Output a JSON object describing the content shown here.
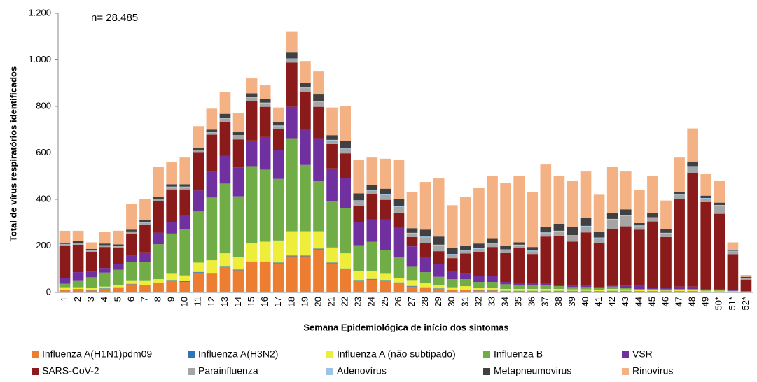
{
  "chart_data": {
    "type": "stacked-bar",
    "annotation": "n= 28.485",
    "ylabel": "Total de vírus respiratórios identificados",
    "xlabel": "Semana Epidemiológica de início dos sintomas",
    "categories": [
      "1",
      "2",
      "3",
      "4",
      "5",
      "6",
      "7",
      "8",
      "9",
      "10",
      "11",
      "12",
      "13",
      "14",
      "15",
      "16",
      "17",
      "18",
      "19",
      "20",
      "21",
      "22",
      "23",
      "24",
      "25",
      "26",
      "27",
      "28",
      "29",
      "30",
      "31",
      "32",
      "33",
      "34",
      "35",
      "36",
      "37",
      "38",
      "39",
      "40",
      "41",
      "42",
      "43",
      "44",
      "45",
      "46",
      "47",
      "48",
      "49",
      "50*",
      "51*",
      "52*"
    ],
    "ylim": [
      0,
      1200
    ],
    "yticks": [
      0,
      200,
      400,
      600,
      800,
      {
        "value": 1000,
        "label": "1.000"
      },
      {
        "value": 1200,
        "label": "1.200"
      }
    ],
    "series": [
      {
        "name": "Influenza A(H1N1)pdm09",
        "color": "#ed7d31",
        "values": [
          10,
          12,
          8,
          15,
          20,
          35,
          30,
          40,
          50,
          45,
          85,
          80,
          110,
          95,
          130,
          130,
          125,
          155,
          155,
          185,
          125,
          100,
          50,
          55,
          50,
          40,
          25,
          20,
          15,
          10,
          10,
          8,
          8,
          5,
          5,
          5,
          5,
          5,
          5,
          5,
          3,
          5,
          5,
          3,
          3,
          3,
          3,
          3,
          2,
          2,
          2,
          1
        ]
      },
      {
        "name": "Influenza A(H3N2)",
        "color": "#2e75b6",
        "values": [
          2,
          2,
          2,
          2,
          2,
          2,
          2,
          2,
          3,
          3,
          3,
          3,
          3,
          3,
          3,
          3,
          3,
          3,
          3,
          3,
          3,
          3,
          3,
          3,
          3,
          3,
          3,
          2,
          2,
          2,
          2,
          2,
          2,
          2,
          2,
          2,
          2,
          2,
          2,
          2,
          2,
          2,
          2,
          2,
          2,
          2,
          2,
          2,
          2,
          2,
          1,
          1
        ]
      },
      {
        "name": "Influenza A (não subtipado)",
        "color": "#eded3a",
        "values": [
          10,
          8,
          10,
          8,
          10,
          15,
          20,
          15,
          30,
          25,
          40,
          55,
          55,
          55,
          80,
          85,
          95,
          105,
          105,
          75,
          65,
          65,
          40,
          35,
          30,
          20,
          25,
          20,
          15,
          10,
          15,
          10,
          10,
          8,
          8,
          8,
          8,
          8,
          6,
          6,
          5,
          8,
          6,
          5,
          5,
          3,
          5,
          5,
          3,
          3,
          2,
          1
        ]
      },
      {
        "name": "Influenza B",
        "color": "#70ad47",
        "values": [
          15,
          30,
          45,
          60,
          65,
          80,
          80,
          150,
          170,
          200,
          220,
          270,
          300,
          260,
          330,
          310,
          265,
          400,
          285,
          215,
          200,
          195,
          110,
          125,
          100,
          90,
          60,
          45,
          35,
          35,
          30,
          25,
          25,
          20,
          15,
          15,
          15,
          12,
          10,
          10,
          8,
          10,
          8,
          5,
          5,
          5,
          5,
          5,
          3,
          3,
          2,
          1
        ]
      },
      {
        "name": "VSR",
        "color": "#7030a0",
        "values": [
          25,
          35,
          25,
          20,
          25,
          25,
          40,
          50,
          50,
          60,
          90,
          110,
          120,
          125,
          110,
          140,
          125,
          135,
          155,
          185,
          140,
          130,
          100,
          95,
          130,
          125,
          85,
          65,
          55,
          35,
          25,
          25,
          25,
          10,
          10,
          10,
          10,
          5,
          5,
          5,
          5,
          8,
          8,
          15,
          5,
          5,
          10,
          10,
          3,
          3,
          2,
          1
        ]
      },
      {
        "name": "SARS-CoV-2",
        "color": "#8b1a1a",
        "values": [
          138,
          118,
          85,
          90,
          70,
          95,
          120,
          135,
          140,
          110,
          165,
          160,
          145,
          120,
          170,
          130,
          90,
          190,
          160,
          135,
          105,
          105,
          70,
          110,
          85,
          65,
          40,
          60,
          55,
          55,
          85,
          105,
          125,
          125,
          150,
          125,
          200,
          210,
          190,
          230,
          190,
          240,
          255,
          240,
          285,
          220,
          375,
          490,
          375,
          325,
          155,
          50
        ]
      },
      {
        "name": "Parainfluenza",
        "color": "#a5a5a5",
        "values": [
          6,
          6,
          5,
          6,
          6,
          8,
          8,
          8,
          10,
          10,
          8,
          10,
          15,
          15,
          15,
          15,
          12,
          15,
          15,
          20,
          15,
          20,
          20,
          15,
          20,
          25,
          15,
          25,
          25,
          15,
          12,
          12,
          15,
          12,
          12,
          12,
          15,
          20,
          25,
          25,
          20,
          40,
          45,
          15,
          15,
          15,
          20,
          25,
          15,
          35,
          12,
          5
        ]
      },
      {
        "name": "Adenovírus",
        "color": "#9dc3e6",
        "values": [
          2,
          2,
          2,
          2,
          2,
          2,
          2,
          2,
          2,
          2,
          2,
          2,
          3,
          3,
          3,
          3,
          3,
          3,
          3,
          3,
          3,
          3,
          3,
          3,
          3,
          3,
          3,
          3,
          3,
          3,
          3,
          3,
          3,
          3,
          3,
          3,
          3,
          3,
          3,
          3,
          3,
          3,
          3,
          3,
          3,
          3,
          3,
          3,
          3,
          3,
          3,
          2
        ]
      },
      {
        "name": "Metapneumovirus",
        "color": "#404040",
        "values": [
          6,
          7,
          5,
          7,
          6,
          8,
          8,
          8,
          10,
          10,
          7,
          10,
          17,
          15,
          15,
          15,
          15,
          25,
          20,
          30,
          20,
          30,
          30,
          20,
          25,
          30,
          20,
          30,
          35,
          25,
          20,
          20,
          20,
          15,
          10,
          15,
          25,
          30,
          35,
          35,
          25,
          25,
          25,
          10,
          20,
          15,
          10,
          20,
          10,
          10,
          3,
          5
        ]
      },
      {
        "name": "Rinovirus",
        "color": "#f4b183",
        "values": [
          51,
          45,
          28,
          50,
          59,
          110,
          90,
          130,
          95,
          115,
          95,
          90,
          92,
          79,
          64,
          59,
          62,
          89,
          94,
          99,
          119,
          149,
          144,
          119,
          129,
          169,
          154,
          205,
          250,
          185,
          208,
          240,
          267,
          270,
          285,
          235,
          267,
          205,
          199,
          199,
          159,
          199,
          163,
          142,
          157,
          124,
          147,
          142,
          94,
          94,
          33,
          8
        ]
      }
    ]
  }
}
